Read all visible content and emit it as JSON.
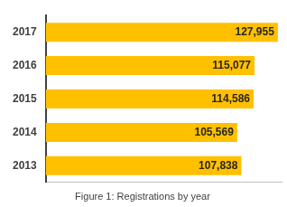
{
  "chart_data": {
    "type": "bar",
    "title": "Figure 1: Registrations by year",
    "orientation": "horizontal",
    "categories": [
      "2017",
      "2016",
      "2015",
      "2014",
      "2013"
    ],
    "values": [
      127955,
      115077,
      114586,
      105569,
      107838
    ],
    "value_labels": [
      "127,955",
      "115,077",
      "114,586",
      "105,569",
      "107,838"
    ],
    "color": "#ffc000",
    "xlim": [
      0,
      130000
    ],
    "grid": false,
    "data_labels": true,
    "tick_labels": "y"
  }
}
